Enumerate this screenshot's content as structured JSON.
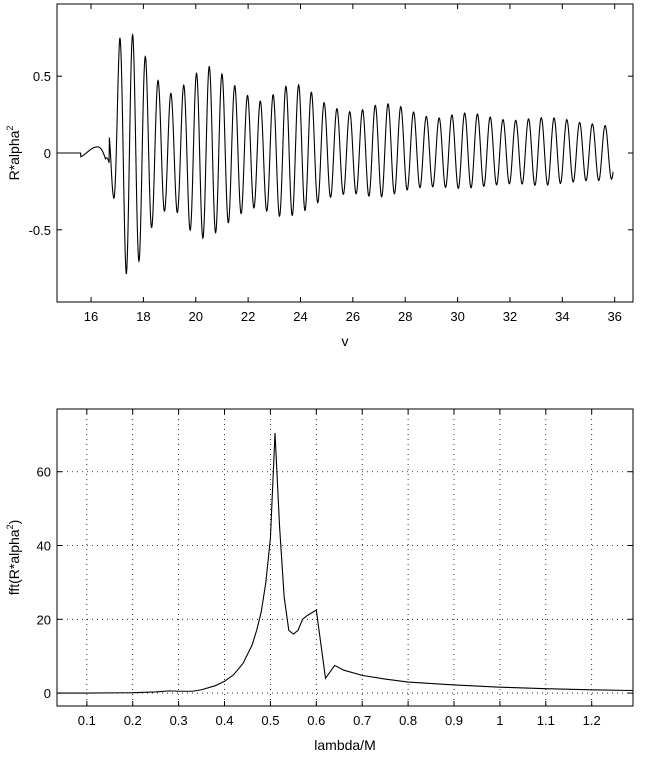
{
  "chart_data": [
    {
      "type": "line",
      "xlabel": "v",
      "ylabel_base": "R*alpha",
      "ylabel_sup": "2",
      "xlim": [
        14.7,
        36.7
      ],
      "ylim": [
        -0.97,
        0.97
      ],
      "xticks": [
        16,
        18,
        20,
        22,
        24,
        26,
        28,
        30,
        32,
        34,
        36
      ],
      "yticks": [
        -0.5,
        0,
        0.5
      ],
      "ytick_labels": [
        "-0.5",
        "0",
        "0.5"
      ],
      "grid": false,
      "signal": {
        "x_start": 14.7,
        "x_end": 35.95,
        "onset": 16.7,
        "frequency": 2.05,
        "peak_maxima": [
          [
            16.55,
            0.04
          ],
          [
            17.1,
            0.75
          ],
          [
            17.6,
            0.77
          ],
          [
            18.1,
            0.62
          ],
          [
            18.6,
            0.46
          ],
          [
            19.1,
            0.38
          ],
          [
            19.6,
            0.45
          ],
          [
            20.1,
            0.53
          ],
          [
            20.6,
            0.57
          ],
          [
            21.1,
            0.5
          ],
          [
            21.6,
            0.42
          ],
          [
            22.1,
            0.36
          ],
          [
            22.6,
            0.33
          ],
          [
            23.1,
            0.4
          ],
          [
            23.6,
            0.45
          ],
          [
            24.1,
            0.44
          ],
          [
            24.6,
            0.37
          ],
          [
            25.1,
            0.3
          ],
          [
            25.6,
            0.28
          ],
          [
            26.1,
            0.26
          ],
          [
            26.6,
            0.3
          ],
          [
            27.1,
            0.32
          ],
          [
            27.6,
            0.32
          ],
          [
            28.1,
            0.28
          ],
          [
            28.6,
            0.25
          ],
          [
            29.1,
            0.22
          ],
          [
            29.6,
            0.24
          ],
          [
            30.1,
            0.26
          ],
          [
            30.6,
            0.26
          ],
          [
            31.1,
            0.24
          ],
          [
            31.6,
            0.22
          ],
          [
            32.1,
            0.21
          ],
          [
            32.6,
            0.22
          ],
          [
            33.1,
            0.23
          ],
          [
            33.6,
            0.23
          ],
          [
            34.1,
            0.22
          ],
          [
            34.6,
            0.2
          ],
          [
            35.1,
            0.19
          ],
          [
            35.6,
            0.18
          ],
          [
            35.9,
            0.17
          ]
        ],
        "peak_minima": [
          [
            16.1,
            -0.03
          ],
          [
            16.85,
            -0.28
          ],
          [
            17.35,
            -0.79
          ],
          [
            17.85,
            -0.7
          ],
          [
            18.35,
            -0.47
          ],
          [
            18.85,
            -0.37
          ],
          [
            19.35,
            -0.39
          ],
          [
            19.85,
            -0.52
          ],
          [
            20.35,
            -0.56
          ],
          [
            20.85,
            -0.51
          ],
          [
            21.35,
            -0.44
          ],
          [
            21.85,
            -0.38
          ],
          [
            22.35,
            -0.35
          ],
          [
            22.85,
            -0.39
          ],
          [
            23.35,
            -0.42
          ],
          [
            23.85,
            -0.4
          ],
          [
            24.35,
            -0.36
          ],
          [
            24.85,
            -0.3
          ],
          [
            25.35,
            -0.28
          ],
          [
            25.85,
            -0.26
          ],
          [
            26.35,
            -0.27
          ],
          [
            26.85,
            -0.29
          ],
          [
            27.35,
            -0.28
          ],
          [
            27.85,
            -0.25
          ],
          [
            28.35,
            -0.23
          ],
          [
            28.85,
            -0.22
          ],
          [
            29.35,
            -0.22
          ],
          [
            29.85,
            -0.23
          ],
          [
            30.35,
            -0.23
          ],
          [
            30.85,
            -0.22
          ],
          [
            31.35,
            -0.21
          ],
          [
            31.85,
            -0.2
          ],
          [
            32.35,
            -0.2
          ],
          [
            32.85,
            -0.21
          ],
          [
            33.35,
            -0.21
          ],
          [
            33.85,
            -0.2
          ],
          [
            34.35,
            -0.19
          ],
          [
            34.85,
            -0.18
          ],
          [
            35.35,
            -0.18
          ],
          [
            35.85,
            -0.17
          ]
        ]
      }
    },
    {
      "type": "line",
      "xlabel": "lambda/M",
      "ylabel_base": "fft(R*alpha",
      "ylabel_sup": "2",
      "ylabel_tail": ")",
      "xlim": [
        0.035,
        1.29
      ],
      "ylim": [
        -3.5,
        77
      ],
      "xticks": [
        0.1,
        0.2,
        0.3,
        0.4,
        0.5,
        0.6,
        0.7,
        0.8,
        0.9,
        1,
        1.1,
        1.2
      ],
      "xtick_labels": [
        "0.1",
        "0.2",
        "0.3",
        "0.4",
        "0.5",
        "0.6",
        "0.7",
        "0.8",
        "0.9",
        "1",
        "1.1",
        "1.2"
      ],
      "yticks": [
        0,
        20,
        40,
        60
      ],
      "ytick_labels": [
        "0",
        "20",
        "40",
        "60"
      ],
      "grid": true,
      "x": [
        0.035,
        0.1,
        0.2,
        0.25,
        0.28,
        0.3,
        0.33,
        0.35,
        0.38,
        0.4,
        0.42,
        0.44,
        0.46,
        0.47,
        0.48,
        0.49,
        0.5,
        0.51,
        0.52,
        0.53,
        0.54,
        0.55,
        0.56,
        0.57,
        0.58,
        0.6,
        0.62,
        0.64,
        0.66,
        0.7,
        0.75,
        0.8,
        0.9,
        1.0,
        1.1,
        1.2,
        1.29
      ],
      "y": [
        0,
        0,
        0.1,
        0.3,
        0.6,
        0.5,
        0.5,
        0.9,
        2.0,
        3.2,
        5.0,
        8.0,
        13.0,
        17.0,
        22.0,
        30.0,
        42.0,
        70.5,
        45.0,
        26.0,
        17.0,
        16.0,
        17.0,
        20.0,
        21.0,
        22.5,
        4.0,
        7.5,
        6.2,
        4.8,
        3.8,
        3.0,
        2.2,
        1.6,
        1.2,
        0.9,
        0.7
      ]
    }
  ]
}
